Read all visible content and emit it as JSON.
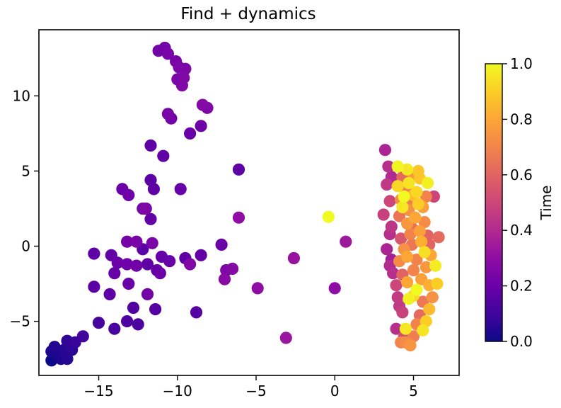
{
  "chart_data": {
    "type": "scatter",
    "title": "Find + dynamics",
    "xlabel": "",
    "ylabel": "",
    "xlim": [
      -18.8,
      7.9
    ],
    "ylim": [
      -8.6,
      14.4
    ],
    "xticks": [
      -15,
      -10,
      -5,
      0,
      5
    ],
    "xtick_labels": [
      "−15",
      "−10",
      "−5",
      "0",
      "5"
    ],
    "yticks": [
      -5,
      0,
      5,
      10
    ],
    "ytick_labels": [
      "−5",
      "0",
      "5",
      "10"
    ],
    "grid": false,
    "colorbar": {
      "label": "Time",
      "range": [
        0,
        1
      ],
      "ticks": [
        0.0,
        0.2,
        0.4,
        0.6,
        0.8,
        1.0
      ],
      "tick_labels": [
        "0.0",
        "0.2",
        "0.4",
        "0.6",
        "0.8",
        "1.0"
      ],
      "colormap": "plasma"
    },
    "points": [
      {
        "x": -18.0,
        "y": -7.6,
        "c": 0.0
      },
      {
        "x": -17.7,
        "y": -7.2,
        "c": 0.02
      },
      {
        "x": -18.0,
        "y": -7.0,
        "c": 0.03
      },
      {
        "x": -17.4,
        "y": -7.5,
        "c": 0.03
      },
      {
        "x": -17.8,
        "y": -6.7,
        "c": 0.04
      },
      {
        "x": -17.0,
        "y": -7.5,
        "c": 0.05
      },
      {
        "x": -17.2,
        "y": -6.9,
        "c": 0.05
      },
      {
        "x": -16.7,
        "y": -6.9,
        "c": 0.06
      },
      {
        "x": -17.0,
        "y": -6.3,
        "c": 0.07
      },
      {
        "x": -16.5,
        "y": -6.4,
        "c": 0.08
      },
      {
        "x": -16.0,
        "y": -6.0,
        "c": 0.1
      },
      {
        "x": -15.0,
        "y": -5.1,
        "c": 0.11
      },
      {
        "x": -14.0,
        "y": -5.5,
        "c": 0.12
      },
      {
        "x": -13.2,
        "y": -5.0,
        "c": 0.13
      },
      {
        "x": -12.5,
        "y": -5.2,
        "c": 0.13
      },
      {
        "x": -12.8,
        "y": -4.1,
        "c": 0.14
      },
      {
        "x": -11.4,
        "y": -4.2,
        "c": 0.15
      },
      {
        "x": -8.8,
        "y": -4.4,
        "c": 0.15
      },
      {
        "x": -15.3,
        "y": -2.7,
        "c": 0.16
      },
      {
        "x": -14.3,
        "y": -3.2,
        "c": 0.17
      },
      {
        "x": -13.1,
        "y": -2.5,
        "c": 0.2
      },
      {
        "x": -11.9,
        "y": -3.2,
        "c": 0.22
      },
      {
        "x": -15.3,
        "y": -0.5,
        "c": 0.17
      },
      {
        "x": -14.2,
        "y": -0.6,
        "c": 0.18
      },
      {
        "x": -14.0,
        "y": -1.8,
        "c": 0.19
      },
      {
        "x": -13.8,
        "y": -1.1,
        "c": 0.2
      },
      {
        "x": -13.2,
        "y": -1.2,
        "c": 0.21
      },
      {
        "x": -12.6,
        "y": -1.3,
        "c": 0.22
      },
      {
        "x": -12.2,
        "y": -0.2,
        "c": 0.16
      },
      {
        "x": -11.9,
        "y": -1.2,
        "c": 0.17
      },
      {
        "x": -11.3,
        "y": -1.6,
        "c": 0.18
      },
      {
        "x": -11.0,
        "y": -0.7,
        "c": 0.19
      },
      {
        "x": -11.1,
        "y": -1.8,
        "c": 0.2
      },
      {
        "x": -10.5,
        "y": -1.0,
        "c": 0.19
      },
      {
        "x": -9.5,
        "y": -0.8,
        "c": 0.17
      },
      {
        "x": -9.2,
        "y": -1.2,
        "c": 0.26
      },
      {
        "x": -8.5,
        "y": -0.6,
        "c": 0.18
      },
      {
        "x": -7.2,
        "y": 0.1,
        "c": 0.2
      },
      {
        "x": -6.9,
        "y": -1.6,
        "c": 0.25
      },
      {
        "x": -7.0,
        "y": -2.2,
        "c": 0.28
      },
      {
        "x": -13.2,
        "y": 0.3,
        "c": 0.23
      },
      {
        "x": -12.6,
        "y": 0.3,
        "c": 0.24
      },
      {
        "x": -11.6,
        "y": 0.2,
        "c": 0.24
      },
      {
        "x": -13.5,
        "y": 3.8,
        "c": 0.2
      },
      {
        "x": -13.1,
        "y": 3.4,
        "c": 0.21
      },
      {
        "x": -12.0,
        "y": 2.5,
        "c": 0.25
      },
      {
        "x": -12.2,
        "y": 2.5,
        "c": 0.24
      },
      {
        "x": -11.7,
        "y": 1.8,
        "c": 0.18
      },
      {
        "x": -11.5,
        "y": 3.8,
        "c": 0.17
      },
      {
        "x": -11.7,
        "y": 4.4,
        "c": 0.16
      },
      {
        "x": -9.8,
        "y": 3.8,
        "c": 0.19
      },
      {
        "x": -11.7,
        "y": 6.7,
        "c": 0.17
      },
      {
        "x": -10.9,
        "y": 6.0,
        "c": 0.18
      },
      {
        "x": -10.6,
        "y": 8.8,
        "c": 0.24
      },
      {
        "x": -10.4,
        "y": 8.5,
        "c": 0.22
      },
      {
        "x": -9.2,
        "y": 7.5,
        "c": 0.2
      },
      {
        "x": -8.5,
        "y": 8.0,
        "c": 0.21
      },
      {
        "x": -8.4,
        "y": 9.4,
        "c": 0.27
      },
      {
        "x": -8.1,
        "y": 9.2,
        "c": 0.26
      },
      {
        "x": -6.1,
        "y": 5.1,
        "c": 0.17
      },
      {
        "x": -6.1,
        "y": 1.9,
        "c": 0.3
      },
      {
        "x": -11.2,
        "y": 13.0,
        "c": 0.22
      },
      {
        "x": -10.8,
        "y": 13.2,
        "c": 0.22
      },
      {
        "x": -10.6,
        "y": 12.8,
        "c": 0.24
      },
      {
        "x": -10.1,
        "y": 12.3,
        "c": 0.24
      },
      {
        "x": -9.9,
        "y": 11.9,
        "c": 0.25
      },
      {
        "x": -9.5,
        "y": 11.8,
        "c": 0.25
      },
      {
        "x": -9.6,
        "y": 11.2,
        "c": 0.26
      },
      {
        "x": -10.0,
        "y": 11.1,
        "c": 0.25
      },
      {
        "x": -9.7,
        "y": 10.7,
        "c": 0.26
      },
      {
        "x": -6.5,
        "y": -1.5,
        "c": 0.27
      },
      {
        "x": -4.9,
        "y": -2.8,
        "c": 0.3
      },
      {
        "x": -3.1,
        "y": -6.1,
        "c": 0.33
      },
      {
        "x": -2.6,
        "y": -0.8,
        "c": 0.32
      },
      {
        "x": 0.0,
        "y": -2.8,
        "c": 0.3
      },
      {
        "x": 0.7,
        "y": 0.3,
        "c": 0.34
      },
      {
        "x": -0.4,
        "y": 1.95,
        "c": 1.0
      },
      {
        "x": 3.2,
        "y": 6.4,
        "c": 0.38
      },
      {
        "x": 3.4,
        "y": 5.3,
        "c": 0.42
      },
      {
        "x": 3.6,
        "y": 4.6,
        "c": 0.4
      },
      {
        "x": 3.3,
        "y": 4.1,
        "c": 0.45
      },
      {
        "x": 3.5,
        "y": 3.0,
        "c": 0.5
      },
      {
        "x": 3.1,
        "y": 2.1,
        "c": 0.48
      },
      {
        "x": 3.6,
        "y": 1.3,
        "c": 0.44
      },
      {
        "x": 3.5,
        "y": 0.8,
        "c": 0.42
      },
      {
        "x": 3.3,
        "y": -0.2,
        "c": 0.38
      },
      {
        "x": 3.6,
        "y": -0.9,
        "c": 0.36
      },
      {
        "x": 3.5,
        "y": -1.3,
        "c": 0.4
      },
      {
        "x": 3.7,
        "y": -1.8,
        "c": 0.42
      },
      {
        "x": 3.9,
        "y": -2.6,
        "c": 0.5
      },
      {
        "x": 4.0,
        "y": -3.4,
        "c": 0.46
      },
      {
        "x": 4.1,
        "y": -4.0,
        "c": 0.45
      },
      {
        "x": 4.3,
        "y": -4.4,
        "c": 0.48
      },
      {
        "x": 3.9,
        "y": -5.5,
        "c": 0.42
      },
      {
        "x": 4.4,
        "y": -6.0,
        "c": 0.52
      },
      {
        "x": 4.2,
        "y": -6.4,
        "c": 0.7
      },
      {
        "x": 4.5,
        "y": -6.4,
        "c": 0.72
      },
      {
        "x": 4.8,
        "y": -6.6,
        "c": 0.75
      },
      {
        "x": 5.0,
        "y": -6.0,
        "c": 0.68
      },
      {
        "x": 4.5,
        "y": -5.5,
        "c": 0.96
      },
      {
        "x": 5.2,
        "y": -5.2,
        "c": 0.7
      },
      {
        "x": 5.6,
        "y": -5.6,
        "c": 0.95
      },
      {
        "x": 5.8,
        "y": -5.0,
        "c": 0.9
      },
      {
        "x": 5.4,
        "y": -4.6,
        "c": 0.62
      },
      {
        "x": 6.0,
        "y": -4.2,
        "c": 0.85
      },
      {
        "x": 5.6,
        "y": -3.7,
        "c": 0.66
      },
      {
        "x": 6.2,
        "y": -3.4,
        "c": 0.74
      },
      {
        "x": 4.7,
        "y": -3.5,
        "c": 0.98
      },
      {
        "x": 5.0,
        "y": -3.3,
        "c": 0.92
      },
      {
        "x": 5.2,
        "y": -2.9,
        "c": 1.0
      },
      {
        "x": 4.6,
        "y": -2.4,
        "c": 0.8
      },
      {
        "x": 5.5,
        "y": -2.2,
        "c": 0.78
      },
      {
        "x": 6.0,
        "y": -2.6,
        "c": 0.82
      },
      {
        "x": 6.5,
        "y": -2.5,
        "c": 0.9
      },
      {
        "x": 4.3,
        "y": -1.9,
        "c": 0.6
      },
      {
        "x": 5.0,
        "y": -1.6,
        "c": 0.7
      },
      {
        "x": 5.8,
        "y": -1.4,
        "c": 0.76
      },
      {
        "x": 6.4,
        "y": -1.3,
        "c": 0.97
      },
      {
        "x": 4.1,
        "y": -1.0,
        "c": 0.72
      },
      {
        "x": 4.6,
        "y": -0.7,
        "c": 0.8
      },
      {
        "x": 5.2,
        "y": -0.9,
        "c": 0.7
      },
      {
        "x": 5.7,
        "y": -0.4,
        "c": 0.94
      },
      {
        "x": 6.1,
        "y": -0.6,
        "c": 0.8
      },
      {
        "x": 4.4,
        "y": -0.2,
        "c": 0.74
      },
      {
        "x": 4.9,
        "y": 0.1,
        "c": 0.66
      },
      {
        "x": 5.5,
        "y": 0.3,
        "c": 0.82
      },
      {
        "x": 6.0,
        "y": 0.1,
        "c": 0.6
      },
      {
        "x": 6.6,
        "y": 0.6,
        "c": 0.62
      },
      {
        "x": 4.2,
        "y": 0.5,
        "c": 0.55
      },
      {
        "x": 4.8,
        "y": 0.8,
        "c": 0.7
      },
      {
        "x": 5.4,
        "y": 1.0,
        "c": 0.78
      },
      {
        "x": 5.9,
        "y": 0.7,
        "c": 0.6
      },
      {
        "x": 4.6,
        "y": 1.5,
        "c": 0.76
      },
      {
        "x": 5.1,
        "y": 1.9,
        "c": 0.8
      },
      {
        "x": 5.7,
        "y": 1.6,
        "c": 0.72
      },
      {
        "x": 4.1,
        "y": 2.0,
        "c": 0.65
      },
      {
        "x": 4.7,
        "y": 2.4,
        "c": 0.74
      },
      {
        "x": 5.3,
        "y": 2.8,
        "c": 0.9
      },
      {
        "x": 4.3,
        "y": 2.6,
        "c": 0.96
      },
      {
        "x": 4.8,
        "y": 2.9,
        "c": 0.68
      },
      {
        "x": 5.6,
        "y": 2.6,
        "c": 0.78
      },
      {
        "x": 4.2,
        "y": 3.1,
        "c": 0.72
      },
      {
        "x": 5.0,
        "y": 3.4,
        "c": 0.85
      },
      {
        "x": 5.8,
        "y": 3.3,
        "c": 0.7
      },
      {
        "x": 6.3,
        "y": 3.3,
        "c": 0.5
      },
      {
        "x": 4.5,
        "y": 3.8,
        "c": 0.7
      },
      {
        "x": 5.2,
        "y": 3.6,
        "c": 0.92
      },
      {
        "x": 4.0,
        "y": 4.0,
        "c": 0.92
      },
      {
        "x": 4.7,
        "y": 4.2,
        "c": 0.95
      },
      {
        "x": 5.4,
        "y": 4.5,
        "c": 0.88
      },
      {
        "x": 5.9,
        "y": 4.2,
        "c": 0.98
      },
      {
        "x": 4.3,
        "y": 4.6,
        "c": 0.62
      },
      {
        "x": 5.0,
        "y": 4.8,
        "c": 0.76
      },
      {
        "x": 4.6,
        "y": 5.1,
        "c": 0.96
      },
      {
        "x": 4.0,
        "y": 5.3,
        "c": 0.99
      },
      {
        "x": 5.3,
        "y": 5.0,
        "c": 0.88
      },
      {
        "x": 4.4,
        "y": 3.3,
        "c": 1.0
      },
      {
        "x": 4.9,
        "y": 1.2,
        "c": 0.64
      }
    ]
  }
}
